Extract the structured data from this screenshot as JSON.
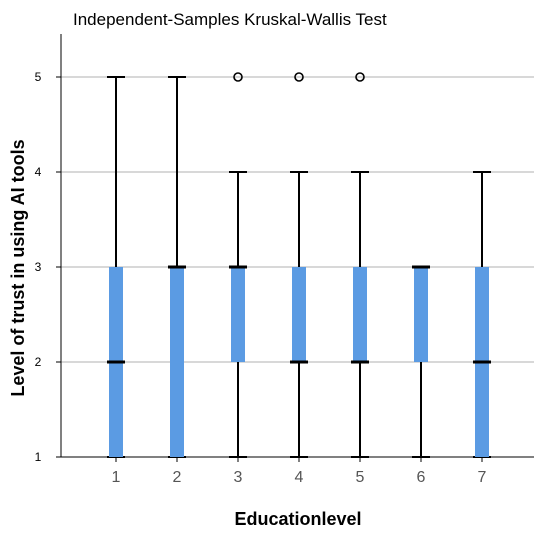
{
  "chart_data": {
    "type": "boxplot",
    "title": "Independent-Samples Kruskal-Wallis Test",
    "xlabel": "Educationlevel",
    "ylabel": "Level of trust in using AI tools",
    "ylim": [
      1,
      5.45
    ],
    "yticks": [
      1,
      2,
      3,
      4,
      5
    ],
    "grid": true,
    "box_color": "#5b9be3",
    "categories": [
      "1",
      "2",
      "3",
      "4",
      "5",
      "6",
      "7"
    ],
    "boxes": [
      {
        "category": "1",
        "whisker_low": 1,
        "q1": 1,
        "median": 2,
        "q3": 3,
        "whisker_high": 5,
        "outliers": []
      },
      {
        "category": "2",
        "whisker_low": 1,
        "q1": 1,
        "median": 3,
        "q3": 3,
        "whisker_high": 5,
        "outliers": []
      },
      {
        "category": "3",
        "whisker_low": 1,
        "q1": 2,
        "median": 3,
        "q3": 3,
        "whisker_high": 4,
        "outliers": [
          5
        ]
      },
      {
        "category": "4",
        "whisker_low": 1,
        "q1": 2,
        "median": 2,
        "q3": 3,
        "whisker_high": 4,
        "outliers": [
          5
        ]
      },
      {
        "category": "5",
        "whisker_low": 1,
        "q1": 2,
        "median": 2,
        "q3": 3,
        "whisker_high": 4,
        "outliers": [
          5
        ]
      },
      {
        "category": "6",
        "whisker_low": 1,
        "q1": 2,
        "median": 3,
        "q3": 3,
        "whisker_high": 3,
        "outliers": []
      },
      {
        "category": "7",
        "whisker_low": 1,
        "q1": 1,
        "median": 2,
        "q3": 3,
        "whisker_high": 4,
        "outliers": []
      }
    ]
  }
}
